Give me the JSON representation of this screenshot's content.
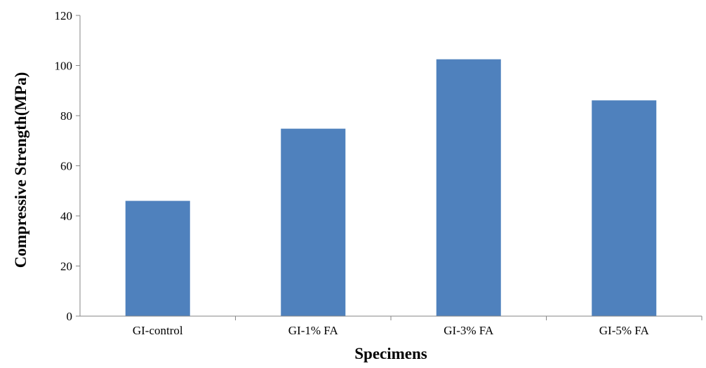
{
  "chart_data": {
    "type": "bar",
    "title": "",
    "xlabel": "Specimens",
    "ylabel": "Compressive Strength(MPa)",
    "categories": [
      "GI-control",
      "GI-1% FA",
      "GI-3% FA",
      "GI-5% FA"
    ],
    "values": [
      46,
      74.8,
      102.5,
      86.1
    ],
    "ylim": [
      0,
      120
    ],
    "yticks": [
      "0",
      "20",
      "40",
      "60",
      "80",
      "100",
      "120"
    ],
    "grid": false,
    "legend": "none",
    "bar_color": "#4F81BD"
  }
}
